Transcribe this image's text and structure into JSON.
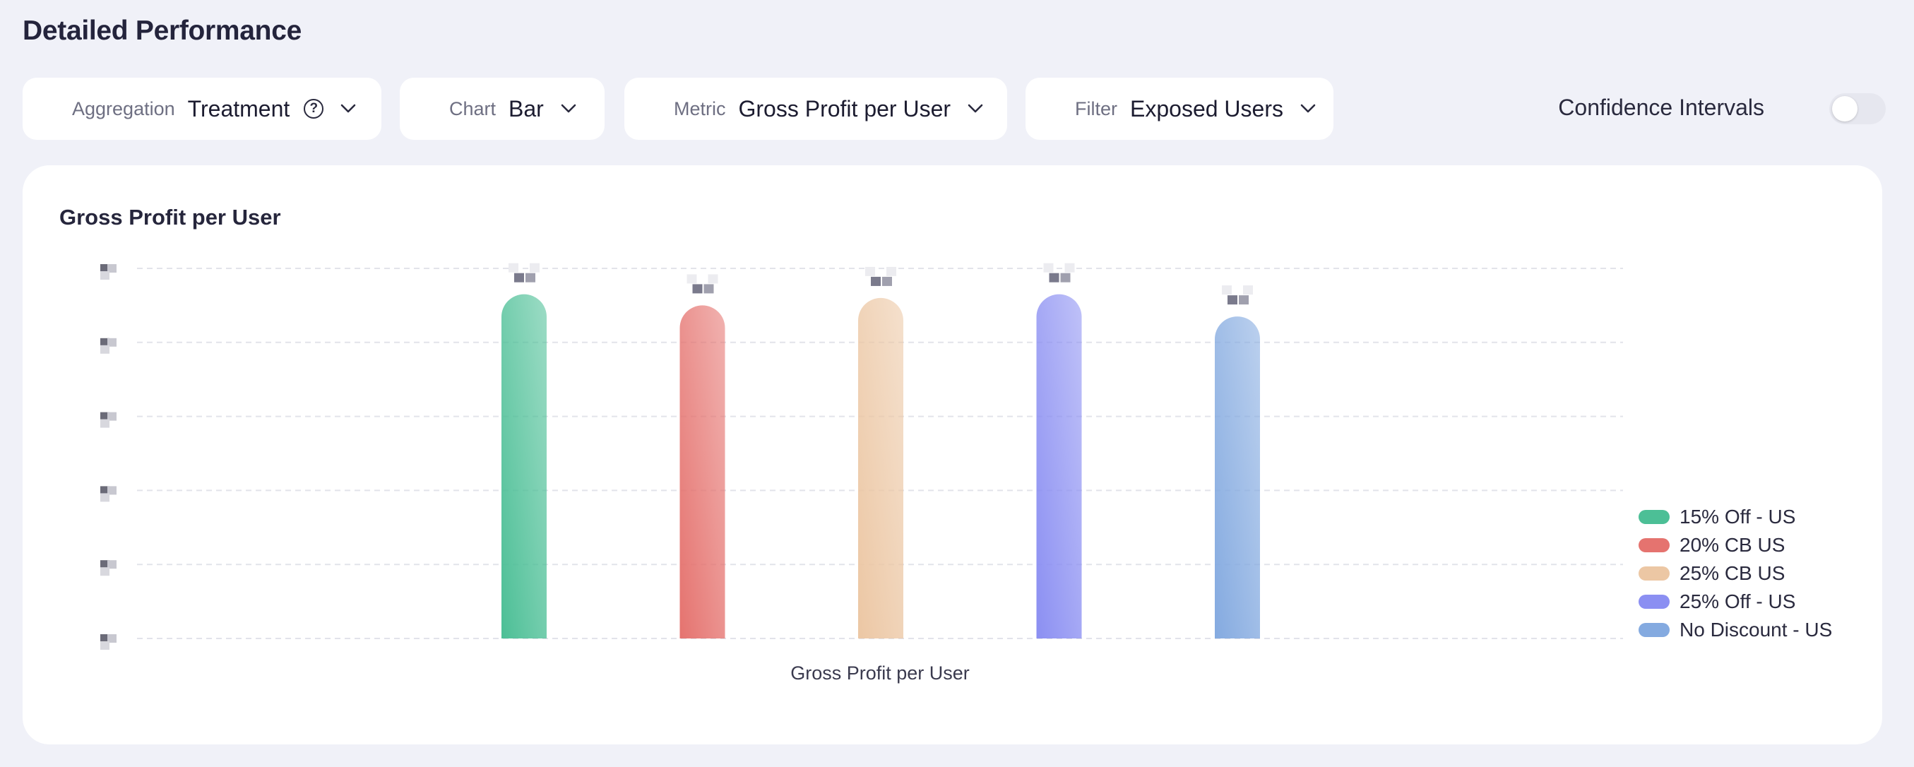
{
  "header": {
    "title": "Detailed Performance"
  },
  "controls": {
    "aggregation": {
      "label": "Aggregation",
      "value": "Treatment"
    },
    "chart": {
      "label": "Chart",
      "value": "Bar"
    },
    "metric": {
      "label": "Metric",
      "value": "Gross Profit per User"
    },
    "filter": {
      "label": "Filter",
      "value": "Exposed Users"
    },
    "confidence": {
      "label": "Confidence Intervals",
      "enabled": false
    }
  },
  "card": {
    "title": "Gross Profit per User"
  },
  "colors": {
    "green": "#4cbf96",
    "red": "#e5736f",
    "tan": "#ecc7a4",
    "purple": "#8b8ff2",
    "blue": "#84aae0"
  },
  "chart_data": {
    "type": "bar",
    "title": "Gross Profit per User",
    "xlabel": "Gross Profit per User",
    "ylabel": "",
    "categories": [
      "Gross Profit per User"
    ],
    "series": [
      {
        "name": "15% Off - US",
        "values": [
          0.93
        ],
        "color": "#4cbf96"
      },
      {
        "name": "20% CB US",
        "values": [
          0.9
        ],
        "color": "#e5736f"
      },
      {
        "name": "25% CB US",
        "values": [
          0.92
        ],
        "color": "#ecc7a4"
      },
      {
        "name": "25% Off - US",
        "values": [
          0.93
        ],
        "color": "#8b8ff2"
      },
      {
        "name": "No Discount - US",
        "values": [
          0.87
        ],
        "color": "#84aae0"
      }
    ],
    "ylim": [
      0,
      1
    ],
    "grid": true,
    "legend": "right",
    "notes": "Y-axis tick labels and bar value labels are pixelated/obscured in the source image."
  }
}
